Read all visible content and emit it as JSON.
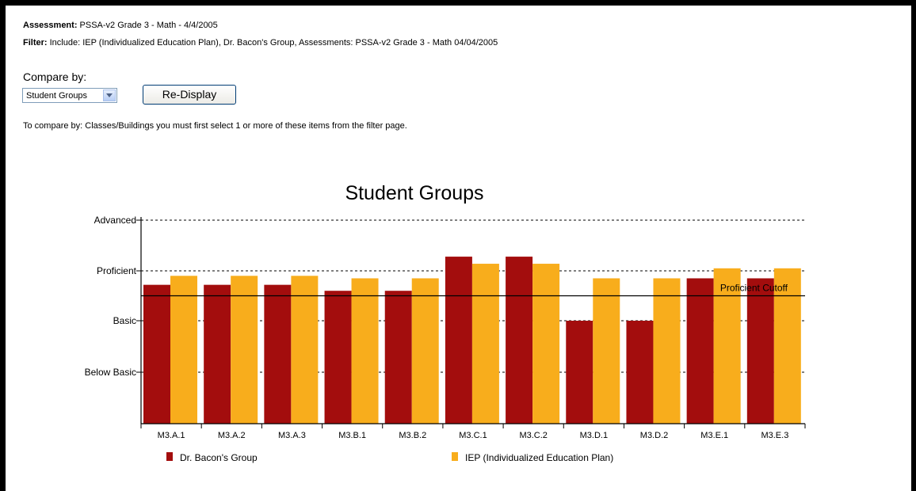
{
  "header": {
    "assessment_label": "Assessment:",
    "assessment_value": " PSSA-v2 Grade 3 - Math - 4/4/2005",
    "filter_label": "Filter:",
    "filter_value": " Include: IEP (Individualized Education Plan), Dr. Bacon's Group, Assessments: PSSA-v2 Grade 3 - Math 04/04/2005"
  },
  "controls": {
    "compare_label": "Compare by:",
    "compare_selected": "Student Groups",
    "redisplay_label": "Re-Display",
    "note": "To compare by: Classes/Buildings you must first select 1 or more of these items from the filter page."
  },
  "colors": {
    "series1": "#a30d0d",
    "series2": "#f8ad1c"
  },
  "chart_data": {
    "type": "bar",
    "title": "Student Groups",
    "categories": [
      "M3.A.1",
      "M3.A.2",
      "M3.A.3",
      "M3.B.1",
      "M3.B.2",
      "M3.C.1",
      "M3.C.2",
      "M3.D.1",
      "M3.D.2",
      "M3.E.1",
      "M3.E.3"
    ],
    "y_levels": [
      "Below Basic",
      "Basic",
      "Proficient",
      "Advanced"
    ],
    "ylim": [
      0,
      4
    ],
    "series": [
      {
        "name": "Dr. Bacon's Group",
        "values": [
          2.72,
          2.72,
          2.72,
          2.6,
          2.6,
          3.28,
          3.28,
          2.0,
          2.0,
          2.85,
          2.85
        ]
      },
      {
        "name": "IEP (Individualized Education Plan)",
        "values": [
          2.9,
          2.9,
          2.9,
          2.85,
          2.85,
          3.14,
          3.14,
          2.85,
          2.85,
          3.05,
          3.05
        ]
      }
    ],
    "cutoff": {
      "label": "Proficient Cutoff",
      "value": 2.5
    },
    "legend_position": "bottom",
    "grid": "dashed horizontal at levels"
  }
}
